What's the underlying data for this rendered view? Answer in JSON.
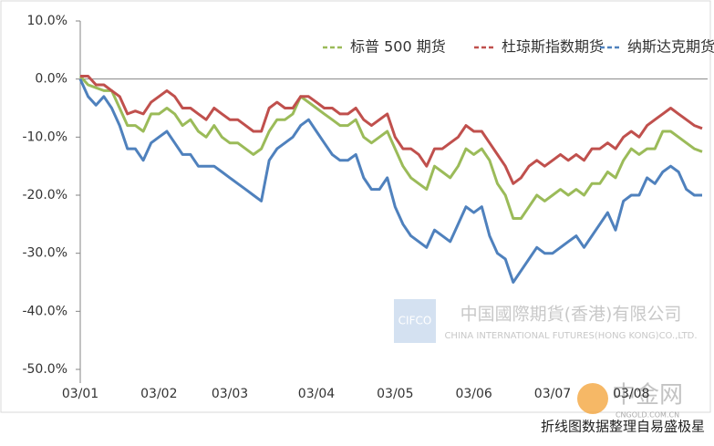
{
  "chart_data": {
    "type": "line",
    "categories": [
      "03/01",
      null,
      null,
      null,
      null,
      null,
      null,
      null,
      null,
      null,
      "03/02",
      null,
      null,
      null,
      null,
      null,
      null,
      null,
      null,
      "03/03",
      null,
      null,
      null,
      null,
      null,
      null,
      null,
      null,
      null,
      null,
      "03/04",
      null,
      null,
      null,
      null,
      null,
      null,
      null,
      null,
      null,
      "03/05",
      null,
      null,
      null,
      null,
      null,
      null,
      null,
      null,
      null,
      "03/06",
      null,
      null,
      null,
      null,
      null,
      null,
      null,
      null,
      null,
      "03/07",
      null,
      null,
      null,
      null,
      null,
      null,
      null,
      null,
      null,
      "03/08",
      null,
      null,
      null,
      null,
      null,
      null,
      null,
      null,
      null
    ],
    "series": [
      {
        "name": "标普 500 期货",
        "color": "#9bbb59",
        "values": [
          0.5,
          -1,
          -1.5,
          -2,
          -2,
          -5,
          -8,
          -8,
          -9,
          -6,
          -6,
          -5,
          -6,
          -8,
          -7,
          -9,
          -10,
          -8,
          -10,
          -11,
          -11,
          -12,
          -13,
          -12,
          -9,
          -7,
          -7,
          -6,
          -3,
          -4,
          -5,
          -6,
          -7,
          -8,
          -8,
          -7,
          -10,
          -11,
          -10,
          -9,
          -12,
          -15,
          -17,
          -18,
          -19,
          -15,
          -16,
          -17,
          -15,
          -12,
          -13,
          -12,
          -14,
          -18,
          -20,
          -24,
          -24,
          -22,
          -20,
          -21,
          -20,
          -19,
          -20,
          -19,
          -20,
          -18,
          -18,
          -16,
          -17,
          -14,
          -12,
          -13,
          -12,
          -12,
          -9,
          -9,
          -10,
          -11,
          -12,
          -12.5
        ]
      },
      {
        "name": "杜琼斯指数期货",
        "color": "#c0504d",
        "values": [
          0.5,
          0.5,
          -1,
          -1,
          -2,
          -3,
          -6,
          -5.5,
          -6,
          -4,
          -3,
          -2,
          -3,
          -5,
          -5,
          -6,
          -7,
          -5,
          -6,
          -7,
          -7,
          -8,
          -9,
          -9,
          -5,
          -4,
          -5,
          -5,
          -3,
          -3,
          -4,
          -5,
          -5,
          -6,
          -6,
          -5,
          -7,
          -8,
          -7,
          -6,
          -10,
          -12,
          -12,
          -13,
          -15,
          -12,
          -12,
          -11,
          -10,
          -8,
          -9,
          -9,
          -11,
          -13,
          -15,
          -18,
          -17,
          -15,
          -14,
          -15,
          -14,
          -13,
          -14,
          -13,
          -14,
          -12,
          -12,
          -11,
          -12,
          -10,
          -9,
          -10,
          -8,
          -7,
          -6,
          -5,
          -6,
          -7,
          -8,
          -8.5
        ]
      },
      {
        "name": "纳斯达克期货",
        "color": "#4f81bd",
        "values": [
          0,
          -3,
          -4.5,
          -3,
          -5,
          -8,
          -12,
          -12,
          -14,
          -11,
          -10,
          -9,
          -11,
          -13,
          -13,
          -15,
          -15,
          -15,
          -16,
          -17,
          -18,
          -19,
          -20,
          -21,
          -14,
          -12,
          -11,
          -10,
          -8,
          -7,
          -9,
          -11,
          -13,
          -14,
          -14,
          -13,
          -17,
          -19,
          -19,
          -17,
          -22,
          -25,
          -27,
          -28,
          -29,
          -26,
          -27,
          -28,
          -25,
          -22,
          -23,
          -22,
          -27,
          -30,
          -31,
          -35,
          -33,
          -31,
          -29,
          -30,
          -30,
          -29,
          -28,
          -27,
          -29,
          -27,
          -25,
          -23,
          -26,
          -21,
          -20,
          -20,
          -17,
          -18,
          -16,
          -15,
          -16,
          -19,
          -20,
          -20
        ]
      }
    ],
    "ylim": [
      -50,
      10
    ],
    "yticks": [
      {
        "value": 10,
        "label": "10.0%"
      },
      {
        "value": 0,
        "label": "0.0%"
      },
      {
        "value": -10,
        "label": "-10.0%"
      },
      {
        "value": -20,
        "label": "-20.0%"
      },
      {
        "value": -30,
        "label": "-30.0%"
      },
      {
        "value": -40,
        "label": "-40.0%"
      },
      {
        "value": -50,
        "label": "-50.0%"
      }
    ],
    "legend": "top-right",
    "annotations": [
      "CIFCO",
      "中国國際期貨(香港)有限公司",
      "CHINA INTERNATIONAL FUTURES(HONG KONG)CO.,LTD.",
      "中金网",
      "CNGOLD.COM.CN"
    ],
    "footer": "折线图数据整理自易盛极星"
  }
}
